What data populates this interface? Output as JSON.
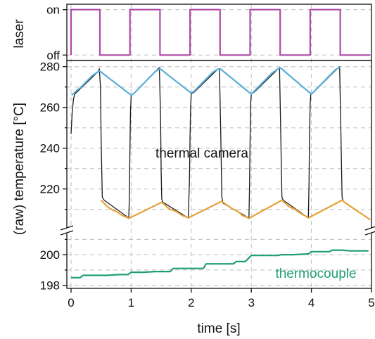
{
  "chart_data": {
    "type": "line",
    "x_axis": {
      "label": "time [s]",
      "range": [
        -0.07,
        5.0
      ],
      "ticks": [
        0,
        1,
        2,
        3,
        4,
        5
      ],
      "grid": true
    },
    "panels": [
      {
        "id": "laser",
        "ylabel": "laser",
        "tick_labels": [
          "off",
          "on"
        ],
        "tick_values": [
          0,
          1
        ],
        "ylim": [
          -0.12,
          1.12
        ],
        "series": [
          {
            "color": "#b04aa8",
            "x": [
              0.0,
              0.0,
              0.48,
              0.48,
              0.98,
              0.98,
              1.48,
              1.48,
              1.98,
              1.98,
              2.48,
              2.48,
              2.98,
              2.98,
              3.48,
              3.48,
              3.98,
              3.98,
              4.48,
              4.48,
              4.98
            ],
            "y": [
              0,
              1,
              1,
              0,
              0,
              1,
              1,
              0,
              0,
              1,
              1,
              0,
              0,
              1,
              1,
              0,
              0,
              1,
              1,
              0,
              0
            ]
          }
        ]
      },
      {
        "id": "thermal",
        "tick_labels": [
          "220",
          "240",
          "260",
          "280"
        ],
        "tick_values": [
          220,
          240,
          260,
          280
        ],
        "ylim": [
          203,
          283
        ],
        "annotation": "thermal camera",
        "series": [
          {
            "color": "#1a1a1a",
            "x": [
              0.0,
              0.02,
              0.04,
              0.06,
              0.45,
              0.47,
              0.49,
              0.5,
              0.52,
              0.55,
              0.96,
              0.97,
              0.98,
              0.99,
              1.0,
              1.02,
              1.05,
              1.45,
              1.47,
              1.49,
              1.5,
              1.51,
              1.53,
              1.95,
              1.97,
              1.98,
              1.99,
              2.0,
              2.02,
              2.05,
              2.45,
              2.47,
              2.49,
              2.51,
              2.53,
              2.96,
              2.97,
              2.98,
              2.99,
              3.0,
              3.02,
              3.05,
              3.45,
              3.47,
              3.49,
              3.51,
              3.53,
              3.95,
              3.96,
              3.97,
              3.98,
              3.99,
              4.01,
              4.04,
              4.45,
              4.47,
              4.49,
              4.51,
              4.53
            ],
            "y": [
              247,
              258,
              264,
              266.5,
              277.5,
              279,
              270,
              245,
              216,
              214.5,
              205.8,
              215,
              240,
              258,
              265.5,
              266.5,
              267,
              279,
              279.5,
              255,
              228,
              215,
              213.5,
              205.8,
              223,
              245,
              260,
              266.5,
              267,
              267.5,
              279,
              279,
              250,
              216,
              213,
              205.8,
              220,
              245,
              262,
              266.5,
              267,
              267.5,
              279,
              279.5,
              248,
              216,
              214.5,
              205.8,
              222,
              248,
              262,
              266.5,
              267,
              267.5,
              279.5,
              280,
              250,
              216,
              214
            ]
          },
          {
            "color": "#5aaed8",
            "x": [
              0.01,
              0.05,
              0.1,
              0.15,
              0.2,
              0.25,
              0.3,
              0.35,
              0.4,
              0.45,
              0.47,
              1.0,
              1.05,
              1.1,
              1.15,
              1.2,
              1.25,
              1.3,
              1.35,
              1.4,
              1.45,
              1.48,
              2.0,
              2.05,
              2.1,
              2.15,
              2.2,
              2.25,
              2.3,
              2.35,
              2.4,
              2.45,
              2.48,
              3.0,
              3.05,
              3.1,
              3.15,
              3.2,
              3.25,
              3.3,
              3.35,
              3.4,
              3.45,
              3.48,
              4.0,
              4.05,
              4.1,
              4.15,
              4.2,
              4.25,
              4.3,
              4.35,
              4.4,
              4.45,
              4.48
            ],
            "y": [
              266,
              267,
              268.5,
              269.5,
              271,
              272.5,
              274,
              275.5,
              276.5,
              277.5,
              278,
              266,
              267,
              268.5,
              270,
              271.5,
              273,
              274.5,
              276,
              277.5,
              278.5,
              279,
              267,
              268,
              269.5,
              271,
              272.5,
              274,
              275.5,
              277,
              278,
              278.8,
              279,
              266.5,
              268,
              269.5,
              271,
              272.5,
              274,
              275.5,
              277,
              278,
              279,
              279.5,
              266.5,
              268,
              269.5,
              271,
              272.5,
              274,
              275.5,
              277,
              278.5,
              279.3,
              279.8
            ]
          },
          {
            "color": "#e5a33a",
            "x": [
              0.5,
              0.55,
              0.6,
              0.65,
              0.7,
              0.75,
              0.8,
              0.85,
              0.9,
              0.95,
              0.96,
              1.51,
              1.55,
              1.6,
              1.65,
              1.7,
              1.75,
              1.8,
              1.85,
              1.9,
              1.95,
              2.51,
              2.55,
              2.6,
              2.65,
              2.7,
              2.75,
              2.8,
              2.85,
              2.9,
              2.95,
              2.96,
              3.51,
              3.55,
              3.6,
              3.65,
              3.7,
              3.75,
              3.8,
              3.85,
              3.9,
              3.95,
              4.51,
              4.55,
              4.6,
              4.65,
              4.7,
              4.75,
              4.8,
              4.85,
              4.9,
              4.95,
              4.98
            ],
            "y": [
              214.5,
              213,
              211.5,
              210.5,
              209.5,
              209,
              208,
              207,
              206.5,
              205.8,
              205.6,
              213.5,
              212.5,
              211,
              210,
              209.5,
              209,
              208,
              207,
              206.5,
              205.8,
              214,
              213,
              212,
              211,
              210,
              209.5,
              208.5,
              207,
              206.5,
              205.8,
              205.6,
              214.5,
              213.5,
              212,
              211,
              210.5,
              209.5,
              208.5,
              207.5,
              206.8,
              205.8,
              214.5,
              213.5,
              212.5,
              211.5,
              210.5,
              209.5,
              208.5,
              207.5,
              206.5,
              205.5,
              205
            ]
          }
        ]
      },
      {
        "id": "thermocouple",
        "tick_labels": [
          "198",
          "200"
        ],
        "tick_values": [
          198,
          200
        ],
        "ylim": [
          197.8,
          201.2
        ],
        "annotation": "thermocouple",
        "series": [
          {
            "color": "#1f9e74",
            "x": [
              0.0,
              0.15,
              0.2,
              0.4,
              0.6,
              0.8,
              0.95,
              1.0,
              1.2,
              1.4,
              1.65,
              1.7,
              1.9,
              1.95,
              2.0,
              2.2,
              2.25,
              2.4,
              2.5,
              2.7,
              2.75,
              2.9,
              3.0,
              3.1,
              3.3,
              3.45,
              3.5,
              3.7,
              3.95,
              4.0,
              4.2,
              4.3,
              4.35,
              4.5,
              4.65,
              4.8,
              4.95
            ],
            "y": [
              198.5,
              198.5,
              198.65,
              198.65,
              198.65,
              198.7,
              198.7,
              198.85,
              198.85,
              198.9,
              198.9,
              199.1,
              199.1,
              199.1,
              199.1,
              199.1,
              199.4,
              199.4,
              199.4,
              199.4,
              199.55,
              199.55,
              199.95,
              199.95,
              199.95,
              199.95,
              200.0,
              200.0,
              200.05,
              200.2,
              200.2,
              200.2,
              200.3,
              200.3,
              200.25,
              200.25,
              200.25
            ]
          }
        ]
      }
    ]
  }
}
